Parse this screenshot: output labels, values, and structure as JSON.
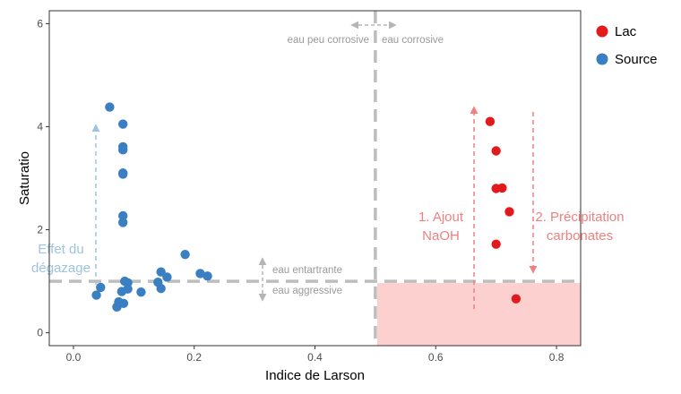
{
  "chart_data": {
    "type": "scatter",
    "xlabel": "Indice de Larson",
    "ylabel": "Saturatio",
    "xlim": [
      -0.04,
      0.84
    ],
    "ylim": [
      -0.25,
      6.25
    ],
    "x_ticks": [
      "0.0",
      "0.2",
      "0.4",
      "0.6",
      "0.8"
    ],
    "y_ticks": [
      "0",
      "2",
      "4",
      "6"
    ],
    "grid": false,
    "legend_position": "right-top",
    "series": [
      {
        "name": "Lac",
        "color": "#e31a1c",
        "points": [
          {
            "x": 0.69,
            "y": 4.1
          },
          {
            "x": 0.7,
            "y": 3.53
          },
          {
            "x": 0.7,
            "y": 2.8
          },
          {
            "x": 0.71,
            "y": 2.81
          },
          {
            "x": 0.722,
            "y": 2.35
          },
          {
            "x": 0.7,
            "y": 1.72
          },
          {
            "x": 0.733,
            "y": 0.66
          }
        ]
      },
      {
        "name": "Source",
        "color": "#3a7fc1",
        "points": [
          {
            "x": 0.06,
            "y": 4.38
          },
          {
            "x": 0.082,
            "y": 4.05
          },
          {
            "x": 0.082,
            "y": 3.61
          },
          {
            "x": 0.082,
            "y": 3.55
          },
          {
            "x": 0.082,
            "y": 3.1
          },
          {
            "x": 0.082,
            "y": 3.08
          },
          {
            "x": 0.082,
            "y": 2.27
          },
          {
            "x": 0.082,
            "y": 2.14
          },
          {
            "x": 0.185,
            "y": 1.52
          },
          {
            "x": 0.21,
            "y": 1.15
          },
          {
            "x": 0.222,
            "y": 1.1
          },
          {
            "x": 0.145,
            "y": 1.18
          },
          {
            "x": 0.155,
            "y": 1.08
          },
          {
            "x": 0.14,
            "y": 0.98
          },
          {
            "x": 0.145,
            "y": 0.86
          },
          {
            "x": 0.085,
            "y": 1.0
          },
          {
            "x": 0.09,
            "y": 0.97
          },
          {
            "x": 0.09,
            "y": 0.85
          },
          {
            "x": 0.08,
            "y": 0.8
          },
          {
            "x": 0.112,
            "y": 0.79
          },
          {
            "x": 0.045,
            "y": 0.88
          },
          {
            "x": 0.038,
            "y": 0.73
          },
          {
            "x": 0.083,
            "y": 0.57
          },
          {
            "x": 0.075,
            "y": 0.6
          },
          {
            "x": 0.072,
            "y": 0.5
          }
        ]
      }
    ],
    "reference_lines": {
      "vertical_x": 0.5,
      "horizontal_y": 1.0,
      "color": "#bdbdbd"
    },
    "shaded_region": {
      "x": [
        0.5,
        0.84
      ],
      "y": [
        -0.25,
        1.0
      ],
      "color": "#fdd0d0"
    },
    "annotations": {
      "corrosive_left": "eau peu corrosive",
      "corrosive_right": "eau corrosive",
      "entartrante": "eau entartrante",
      "aggressive": "eau aggressive",
      "degazage_line1": "Effet du",
      "degazage_line2": "dégazage",
      "naoh_line1": "1. Ajout",
      "naoh_line2": "NaOH",
      "precip_line1": "2. Précipitation",
      "precip_line2": "carbonates",
      "grey_color": "#9a9a9a",
      "blue_color": "#9ec3e3",
      "red_color": "#f08080"
    }
  }
}
